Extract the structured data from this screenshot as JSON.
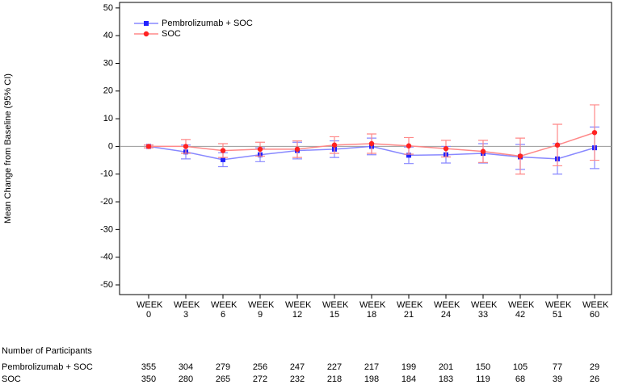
{
  "chart_data": {
    "type": "line",
    "ylabel": "Mean Change from Baseline (95% CI)",
    "categories": [
      "WEEK 0",
      "WEEK 3",
      "WEEK 6",
      "WEEK 9",
      "WEEK 12",
      "WEEK 15",
      "WEEK 18",
      "WEEK 21",
      "WEEK 24",
      "WEEK 33",
      "WEEK 42",
      "WEEK 51",
      "WEEK 60"
    ],
    "series": [
      {
        "name": "Pembrolizumab + SOC",
        "color": "#2222ff",
        "line_color": "#8888ff",
        "values": [
          0,
          -2,
          -4.8,
          -3,
          -1.5,
          -1,
          0,
          -3.2,
          -3,
          -2.5,
          -3.8,
          -4.5,
          -0.5
        ],
        "errors": [
          0.5,
          2.5,
          2.5,
          2.5,
          3,
          3,
          3,
          3,
          3,
          3.5,
          4.5,
          5.5,
          7.5
        ]
      },
      {
        "name": "SOC",
        "color": "#ff2222",
        "line_color": "#ff8888",
        "values": [
          0,
          0,
          -1.5,
          -1,
          -1,
          0.5,
          1,
          0.2,
          -0.8,
          -1.8,
          -3.5,
          0.5,
          5
        ],
        "errors": [
          0.5,
          2.5,
          2.5,
          2.5,
          3,
          3,
          3.5,
          3,
          3,
          4,
          6.5,
          7.5,
          10
        ]
      }
    ],
    "ylim": [
      -53.5,
      52
    ],
    "yticks": [
      -50,
      -40,
      -30,
      -20,
      -10,
      0,
      10,
      20,
      30,
      40,
      50
    ],
    "reference_line": 0,
    "legend": "upper left",
    "participants": {
      "title": "Number of Participants",
      "rows": [
        {
          "label": "Pembrolizumab + SOC",
          "counts": [
            355,
            304,
            279,
            256,
            247,
            227,
            217,
            199,
            201,
            150,
            105,
            77,
            29
          ]
        },
        {
          "label": "SOC",
          "counts": [
            350,
            280,
            265,
            272,
            232,
            218,
            198,
            184,
            183,
            119,
            68,
            39,
            26
          ]
        }
      ]
    }
  }
}
